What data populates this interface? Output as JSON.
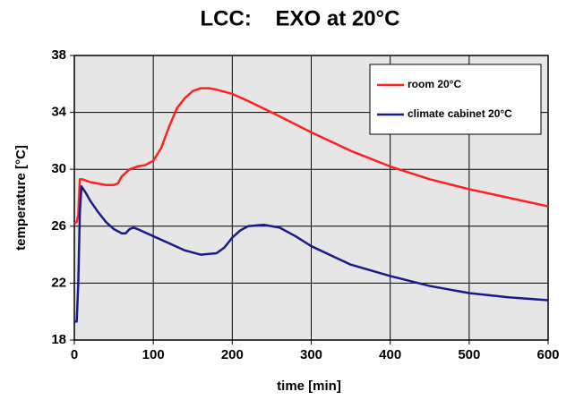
{
  "chart_data": {
    "type": "line",
    "title": "LCC:    EXO at 20°C",
    "xlabel": "time [min]",
    "ylabel": "temperature [°C]",
    "xlim": [
      0,
      600
    ],
    "xticks": [
      0,
      100,
      200,
      300,
      400,
      500,
      600
    ],
    "ylim": [
      18,
      38
    ],
    "yticks": [
      18,
      22,
      26,
      30,
      34,
      38
    ],
    "grid": true,
    "legend": "upper right",
    "series": [
      {
        "name": "room 20°C",
        "color": "#ff2020",
        "x": [
          0,
          3,
          5,
          7,
          10,
          20,
          30,
          40,
          50,
          55,
          60,
          70,
          80,
          90,
          100,
          110,
          120,
          130,
          140,
          150,
          160,
          170,
          180,
          200,
          220,
          250,
          300,
          350,
          400,
          450,
          500,
          550,
          600
        ],
        "values": [
          26.2,
          26.3,
          26.8,
          29.3,
          29.3,
          29.1,
          29.0,
          28.9,
          28.9,
          29.0,
          29.5,
          30.0,
          30.2,
          30.3,
          30.6,
          31.5,
          33.0,
          34.3,
          35.0,
          35.5,
          35.7,
          35.7,
          35.6,
          35.3,
          34.8,
          34.0,
          32.6,
          31.3,
          30.2,
          29.3,
          28.6,
          28.0,
          27.4
        ]
      },
      {
        "name": "climate cabinet 20°C",
        "color": "#1a1a8c",
        "x": [
          0,
          3,
          5,
          7,
          9,
          15,
          20,
          30,
          40,
          50,
          60,
          65,
          70,
          75,
          80,
          100,
          120,
          140,
          160,
          180,
          190,
          200,
          210,
          220,
          240,
          260,
          280,
          300,
          350,
          400,
          450,
          500,
          550,
          600
        ],
        "values": [
          19.3,
          19.3,
          22.0,
          27.0,
          28.8,
          28.3,
          27.8,
          27.0,
          26.3,
          25.8,
          25.5,
          25.5,
          25.8,
          25.9,
          25.8,
          25.3,
          24.8,
          24.3,
          24.0,
          24.1,
          24.5,
          25.2,
          25.7,
          26.0,
          26.1,
          25.9,
          25.3,
          24.6,
          23.3,
          22.5,
          21.8,
          21.3,
          21.0,
          20.8
        ]
      }
    ]
  }
}
